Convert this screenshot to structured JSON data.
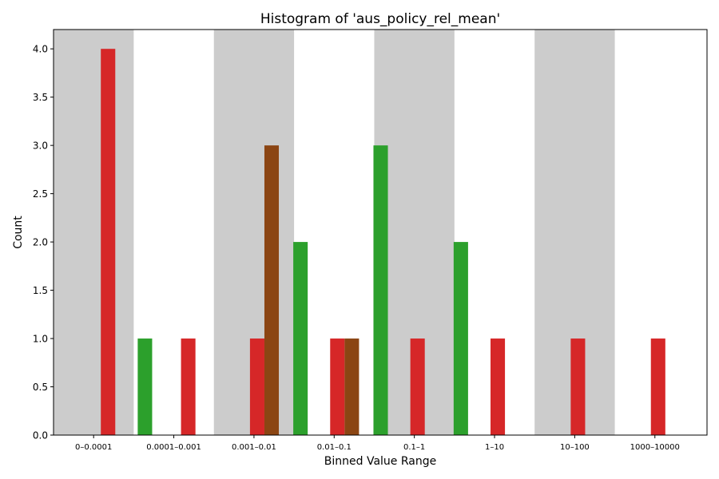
{
  "chart_data": {
    "type": "bar",
    "title": "Histogram of 'aus_policy_rel_mean'",
    "xlabel": "Binned Value Range",
    "ylabel": "Count",
    "ylim": [
      0,
      4.2
    ],
    "yticks": [
      "0.0",
      "0.5",
      "1.0",
      "1.5",
      "2.0",
      "2.5",
      "3.0",
      "3.5",
      "4.0"
    ],
    "categories": [
      "0–0.0001",
      "0.0001–0.001",
      "0.001–0.01",
      "0.01–0.1",
      "0.1–1",
      "1–10",
      "10–100",
      "1000–10000"
    ],
    "shaded_bands": [
      0,
      2,
      4,
      6
    ],
    "colors": {
      "red": "#d62728",
      "green": "#2ca02c",
      "brown": "#8b4513",
      "band": "#cccccc"
    },
    "bars": [
      {
        "x": 0.18,
        "value": 4,
        "color": "red"
      },
      {
        "x": 0.64,
        "value": 1,
        "color": "green"
      },
      {
        "x": 1.18,
        "value": 1,
        "color": "red"
      },
      {
        "x": 2.04,
        "value": 1,
        "color": "red"
      },
      {
        "x": 2.22,
        "value": 3,
        "color": "brown"
      },
      {
        "x": 2.58,
        "value": 2,
        "color": "green"
      },
      {
        "x": 3.04,
        "value": 1,
        "color": "red"
      },
      {
        "x": 3.22,
        "value": 1,
        "color": "brown"
      },
      {
        "x": 3.58,
        "value": 3,
        "color": "green"
      },
      {
        "x": 4.04,
        "value": 1,
        "color": "red"
      },
      {
        "x": 4.58,
        "value": 2,
        "color": "green"
      },
      {
        "x": 5.04,
        "value": 1,
        "color": "red"
      },
      {
        "x": 6.04,
        "value": 1,
        "color": "red"
      },
      {
        "x": 7.04,
        "value": 1,
        "color": "red"
      }
    ]
  }
}
